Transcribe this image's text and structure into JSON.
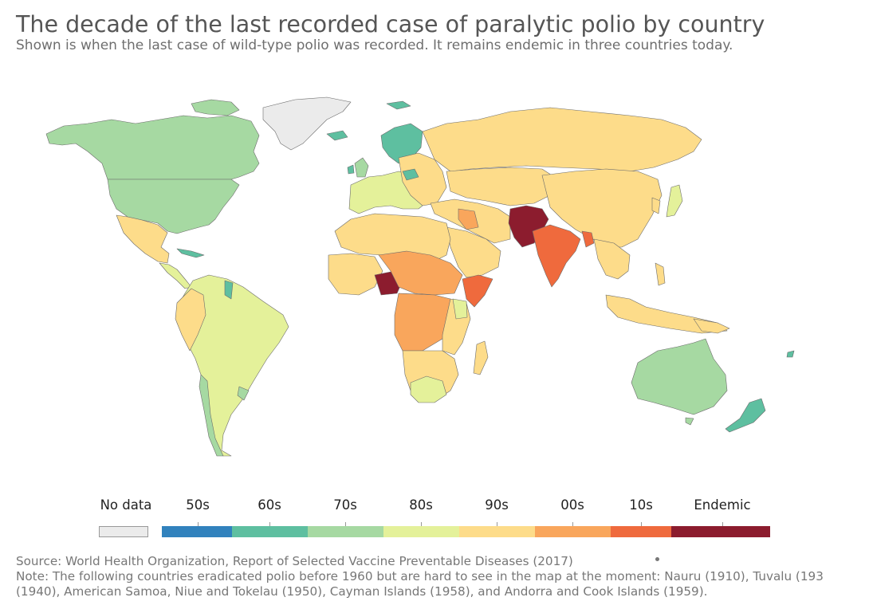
{
  "header": {
    "title": "The decade of the last recorded case of paralytic polio by country",
    "subtitle": "Shown is when the last case of wild-type polio was recorded. It remains endemic in three countries today."
  },
  "legend": {
    "items": [
      {
        "label": "No data",
        "color": "#ebebeb"
      },
      {
        "label": "50s",
        "color": "#3182bd"
      },
      {
        "label": "60s",
        "color": "#5ebfa0"
      },
      {
        "label": "70s",
        "color": "#a6d9a2"
      },
      {
        "label": "80s",
        "color": "#e4f19a"
      },
      {
        "label": "90s",
        "color": "#fddc8a"
      },
      {
        "label": "00s",
        "color": "#f9a65c"
      },
      {
        "label": "10s",
        "color": "#ef6a3d"
      },
      {
        "label": "Endemic",
        "color": "#8c1c2e"
      }
    ]
  },
  "footer": {
    "source": "Source: World Health Organization, Report of Selected Vaccine Preventable Diseases (2017)",
    "note_line1": "Note: The following countries eradicated polio before 1960 but are hard to see in the map at the moment: Nauru (1910), Tuvalu (193",
    "note_line2": "(1940), American Samoa, Niue and Tokelau (1950), Cayman Islands (1958), and Andorra and Cook Islands (1959)."
  }
}
